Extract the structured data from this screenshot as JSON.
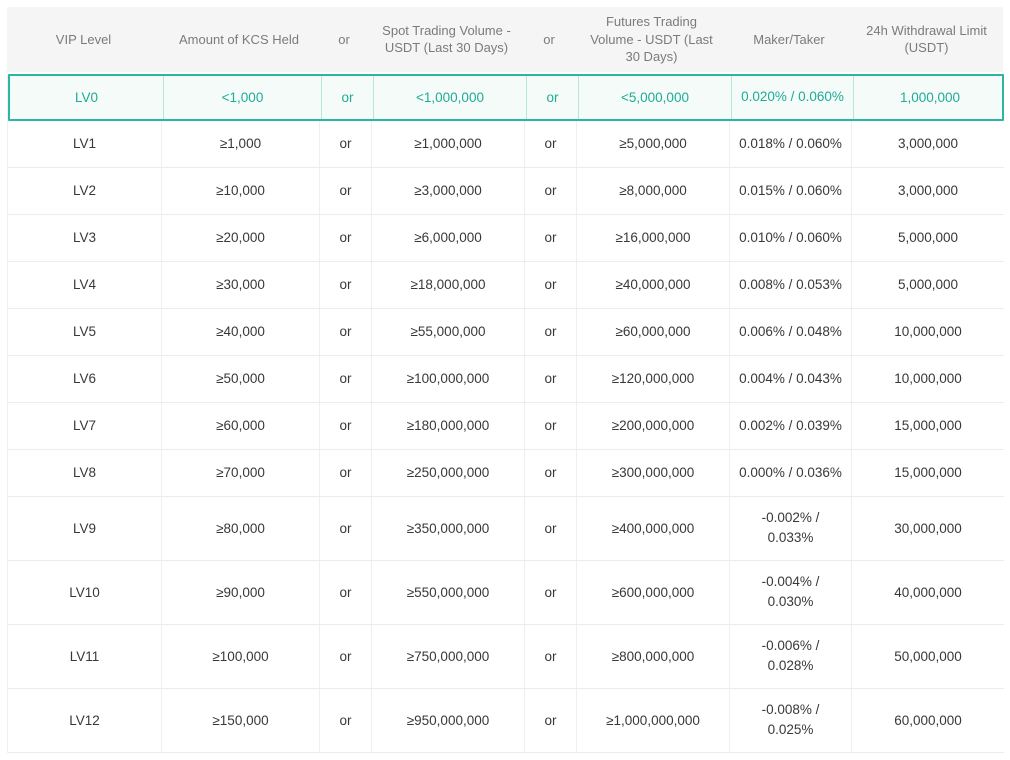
{
  "colors": {
    "accent_teal": "#2bb5a3",
    "accent_teal_text": "#1fab95",
    "highlight_row_bg": "#f4fbf9",
    "header_bg": "#f5f5f5",
    "header_text": "#7b7b7b",
    "body_text": "#383838",
    "divider": "#ececec"
  },
  "header": {
    "columns": [
      "VIP Level",
      "Amount of KCS Held",
      "or",
      "Spot Trading Volume - USDT (Last 30 Days)",
      "or",
      "Futures Trading Volume - USDT (Last 30 Days)",
      "Maker/Taker",
      "24h Withdrawal Limit (USDT)"
    ]
  },
  "table": {
    "or_label": "or",
    "rows": [
      {
        "level": "LV0",
        "kcs": "<1,000",
        "spot": "<1,000,000",
        "futures": "<5,000,000",
        "maker_taker": "0.020% / 0.060%",
        "withdrawal": "1,000,000",
        "highlighted": true
      },
      {
        "level": "LV1",
        "kcs": "≥1,000",
        "spot": "≥1,000,000",
        "futures": "≥5,000,000",
        "maker_taker": "0.018% / 0.060%",
        "withdrawal": "3,000,000"
      },
      {
        "level": "LV2",
        "kcs": "≥10,000",
        "spot": "≥3,000,000",
        "futures": "≥8,000,000",
        "maker_taker": "0.015% / 0.060%",
        "withdrawal": "3,000,000"
      },
      {
        "level": "LV3",
        "kcs": "≥20,000",
        "spot": "≥6,000,000",
        "futures": "≥16,000,000",
        "maker_taker": "0.010% / 0.060%",
        "withdrawal": "5,000,000"
      },
      {
        "level": "LV4",
        "kcs": "≥30,000",
        "spot": "≥18,000,000",
        "futures": "≥40,000,000",
        "maker_taker": "0.008% / 0.053%",
        "withdrawal": "5,000,000"
      },
      {
        "level": "LV5",
        "kcs": "≥40,000",
        "spot": "≥55,000,000",
        "futures": "≥60,000,000",
        "maker_taker": "0.006% / 0.048%",
        "withdrawal": "10,000,000"
      },
      {
        "level": "LV6",
        "kcs": "≥50,000",
        "spot": "≥100,000,000",
        "futures": "≥120,000,000",
        "maker_taker": "0.004% / 0.043%",
        "withdrawal": "10,000,000"
      },
      {
        "level": "LV7",
        "kcs": "≥60,000",
        "spot": "≥180,000,000",
        "futures": "≥200,000,000",
        "maker_taker": "0.002% / 0.039%",
        "withdrawal": "15,000,000"
      },
      {
        "level": "LV8",
        "kcs": "≥70,000",
        "spot": "≥250,000,000",
        "futures": "≥300,000,000",
        "maker_taker": "0.000% / 0.036%",
        "withdrawal": "15,000,000"
      },
      {
        "level": "LV9",
        "kcs": "≥80,000",
        "spot": "≥350,000,000",
        "futures": "≥400,000,000",
        "maker_taker": "-0.002% /\n0.033%",
        "withdrawal": "30,000,000",
        "tall": true
      },
      {
        "level": "LV10",
        "kcs": "≥90,000",
        "spot": "≥550,000,000",
        "futures": "≥600,000,000",
        "maker_taker": "-0.004% /\n0.030%",
        "withdrawal": "40,000,000",
        "tall": true
      },
      {
        "level": "LV11",
        "kcs": "≥100,000",
        "spot": "≥750,000,000",
        "futures": "≥800,000,000",
        "maker_taker": "-0.006% /\n0.028%",
        "withdrawal": "50,000,000",
        "tall": true
      },
      {
        "level": "LV12",
        "kcs": "≥150,000",
        "spot": "≥950,000,000",
        "futures": "≥1,000,000,000",
        "maker_taker": "-0.008% /\n0.025%",
        "withdrawal": "60,000,000",
        "tall": true
      }
    ]
  }
}
